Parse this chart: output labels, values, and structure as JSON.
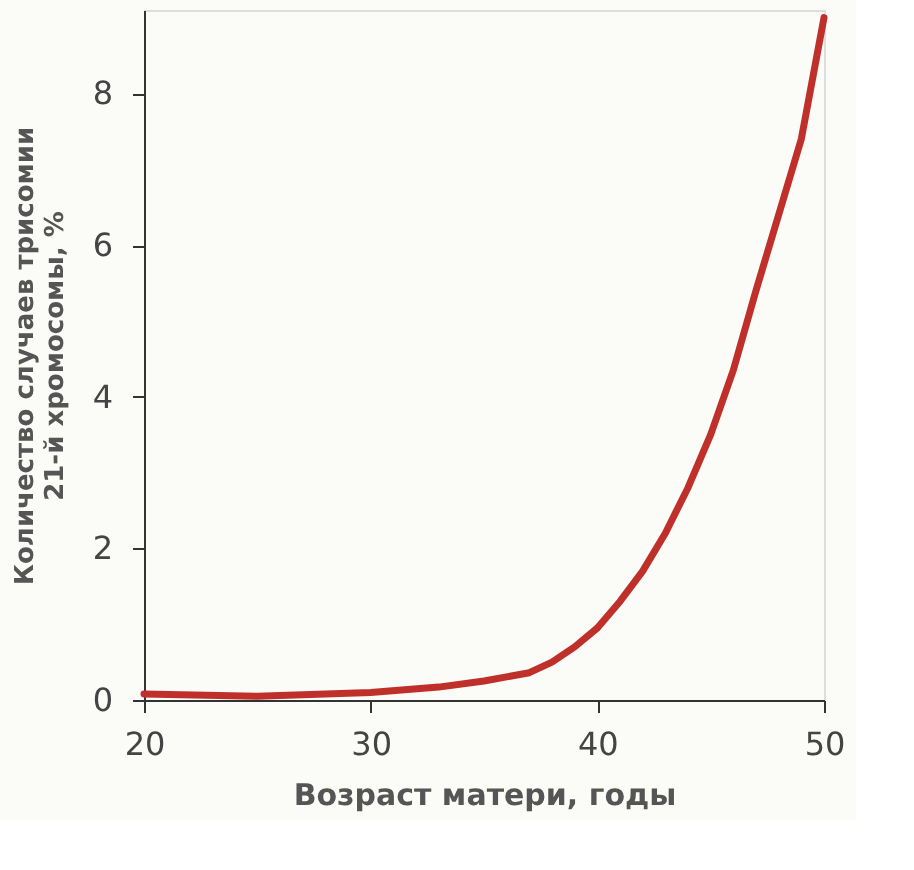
{
  "chart_data": {
    "type": "line",
    "xlabel": "Возраст матери, годы",
    "ylabel": "Количество случаев трисомии\n21-й хромосомы, %",
    "x": [
      20,
      25,
      30,
      33,
      35,
      37,
      38,
      39,
      40,
      41,
      42,
      43,
      44,
      45,
      46,
      47,
      48,
      49,
      50
    ],
    "series": [
      {
        "color": "#c0302a",
        "values": [
          0.08,
          0.05,
          0.1,
          0.17,
          0.25,
          0.36,
          0.5,
          0.7,
          0.95,
          1.3,
          1.7,
          2.2,
          2.8,
          3.5,
          4.35,
          5.4,
          6.4,
          7.4,
          9.0
        ]
      }
    ],
    "xlim": [
      20,
      50
    ],
    "xticks": [
      20,
      30,
      40,
      50
    ],
    "ylim": [
      0,
      9.1
    ],
    "yticks": [
      0,
      2,
      4,
      6,
      8
    ],
    "grid": false,
    "legend": false,
    "marker": "none",
    "line_style": "solid"
  }
}
